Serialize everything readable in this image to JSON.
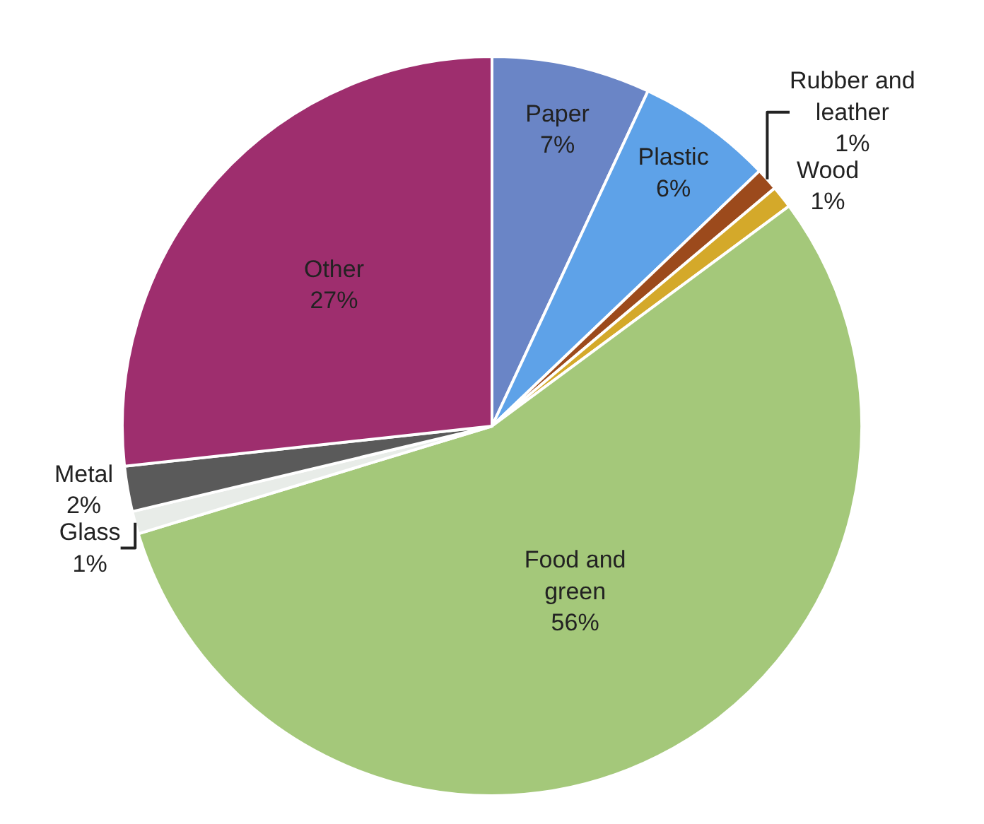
{
  "chart_data": {
    "type": "pie",
    "categories": [
      "Paper",
      "Plastic",
      "Rubber and leather",
      "Wood",
      "Food and green",
      "Glass",
      "Metal",
      "Other"
    ],
    "values": [
      7,
      6,
      1,
      1,
      56,
      1,
      2,
      27
    ],
    "value_labels": [
      "7%",
      "6%",
      "1%",
      "1%",
      "56%",
      "1%",
      "2%",
      "27%"
    ],
    "colors": [
      "#6a85c6",
      "#5ea2e8",
      "#9c4a1c",
      "#d4a92a",
      "#a4c87a",
      "#e8ece8",
      "#5a5a5a",
      "#9e2e6e"
    ],
    "legend": false
  }
}
